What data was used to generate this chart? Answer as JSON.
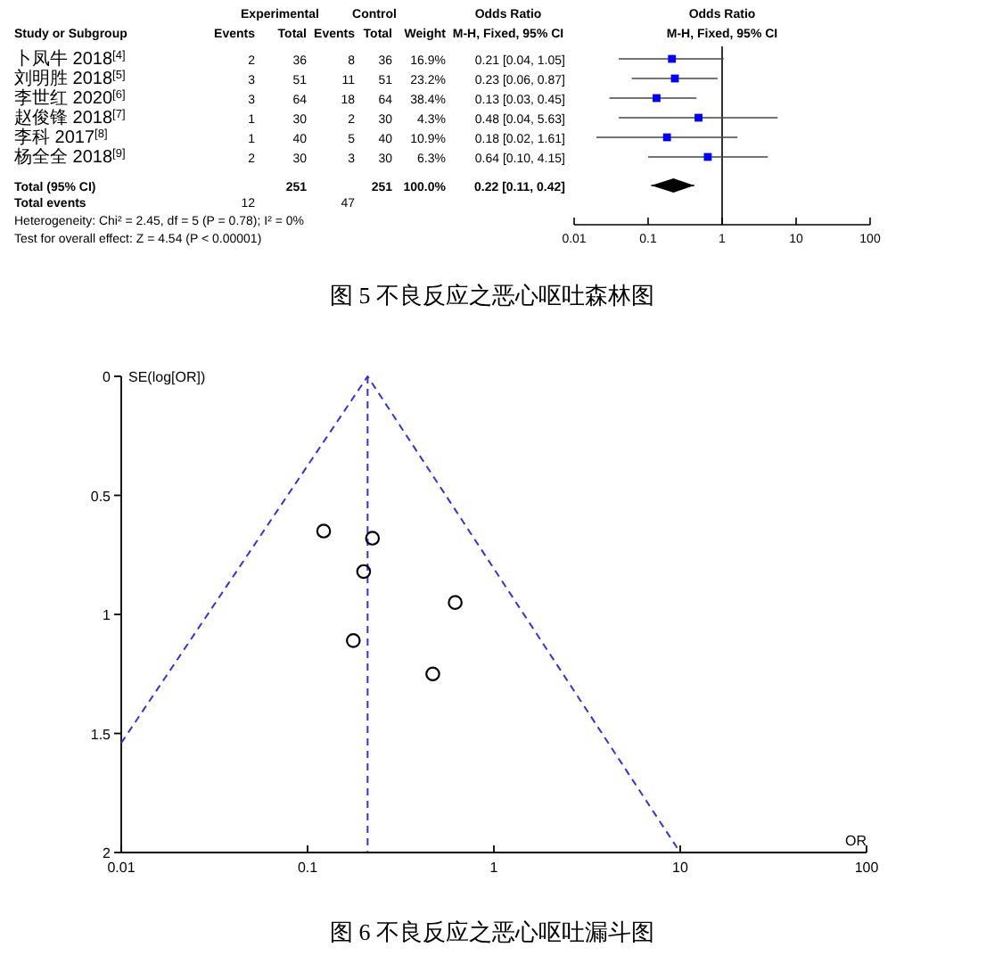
{
  "chart_data": [
    {
      "type": "scatter",
      "orientation": "horizontal",
      "title": "图 5  不良反应之恶心呕吐森林图",
      "log": "x",
      "xlim": [
        0.01,
        100
      ],
      "xticks": [
        0.01,
        0.1,
        1,
        10,
        100
      ],
      "tick_labels": "x",
      "grid": false,
      "categories": [
        "卜凤牛 2018$^{[4]}$",
        "刘明胜 2018$^{[5]}$",
        "李世红 2020$^{[6]}$",
        "赵俊锋 2018$^{[7]}$",
        "李科 2017$^{[8]}$",
        "杨全全 2018$^{[9]}$",
        "Total (95% CI)"
      ],
      "series": [
        {
          "type": "scatter",
          "marker": "square",
          "color": "#0000ff",
          "values": [
            0.21,
            0.23,
            0.13,
            0.48,
            0.18,
            0.64,
            null
          ],
          "errors": [
            [
              0.04,
              1.05
            ],
            [
              0.06,
              0.87
            ],
            [
              0.03,
              0.45
            ],
            [
              0.04,
              5.63
            ],
            [
              0.02,
              1.61
            ],
            [
              0.1,
              4.15
            ],
            null
          ]
        },
        {
          "type": "scatter",
          "marker": "diamond",
          "color": "#000000",
          "values": [
            null,
            null,
            null,
            null,
            null,
            null,
            0.22
          ],
          "errors": [
            null,
            null,
            null,
            null,
            null,
            null,
            [
              0.11,
              0.42
            ]
          ]
        }
      ],
      "ref_lines": [
        {
          "axis": "x",
          "value": 1,
          "color": "#000000"
        }
      ],
      "annotations": [
        "Experimental",
        "Control",
        "Odds Ratio",
        "Odds Ratio",
        "Study or Subgroup",
        "Events",
        "Total",
        "Events",
        "Total",
        "Weight",
        "M-H, Fixed, 95% CI",
        "M-H, Fixed, 95% CI",
        "2",
        "36",
        "8",
        "36",
        "16.9%",
        "3",
        "51",
        "11",
        "51",
        "23.2%",
        "3",
        "64",
        "18",
        "64",
        "38.4%",
        "1",
        "30",
        "2",
        "30",
        "4.3%",
        "1",
        "40",
        "5",
        "40",
        "10.9%",
        "2",
        "30",
        "3",
        "30",
        "6.3%",
        "251",
        "251",
        "100.0%",
        "Total events",
        "12",
        "47",
        "0.21 [0.04, 1.05]",
        "0.23 [0.06, 0.87]",
        "0.13 [0.03, 0.45]",
        "0.48 [0.04, 5.63]",
        "0.18 [0.02, 1.61]",
        "0.64 [0.10, 4.15]",
        "0.22 [0.11, 0.42]",
        "Heterogeneity: Chi² = 2.45, df = 5 (P = 0.78); I² = 0%",
        "Test for overall effect: Z = 4.54 (P < 0.00001)"
      ]
    },
    {
      "type": "scatter",
      "title": "图 6  不良反应之恶心呕吐漏斗图",
      "xlabel": "OR",
      "ylabel": "SE(log[OR])",
      "log": "x",
      "xlim": [
        0.01,
        100
      ],
      "xticks": [
        0.01,
        0.1,
        1,
        10,
        100
      ],
      "ylim": [
        2,
        0
      ],
      "yticks": [
        0,
        0.5,
        1,
        1.5,
        2
      ],
      "grid": false,
      "series": [
        {
          "type": "scatter",
          "marker": "circle",
          "color": "#000000",
          "x": [
            0.122,
            0.223,
            0.2,
            0.62,
            0.176,
            0.47
          ],
          "values": [
            0.65,
            0.68,
            0.82,
            0.95,
            1.11,
            1.25
          ]
        },
        {
          "type": "line",
          "line_style": "dashed",
          "color": "#3333dd",
          "x": [
            0.01,
            0.21,
            10
          ],
          "values": [
            1.54,
            0,
            2
          ]
        }
      ],
      "ref_lines": [
        {
          "axis": "x",
          "value": 0.21,
          "color": "#3333dd",
          "line_style": "dashed"
        }
      ]
    }
  ]
}
